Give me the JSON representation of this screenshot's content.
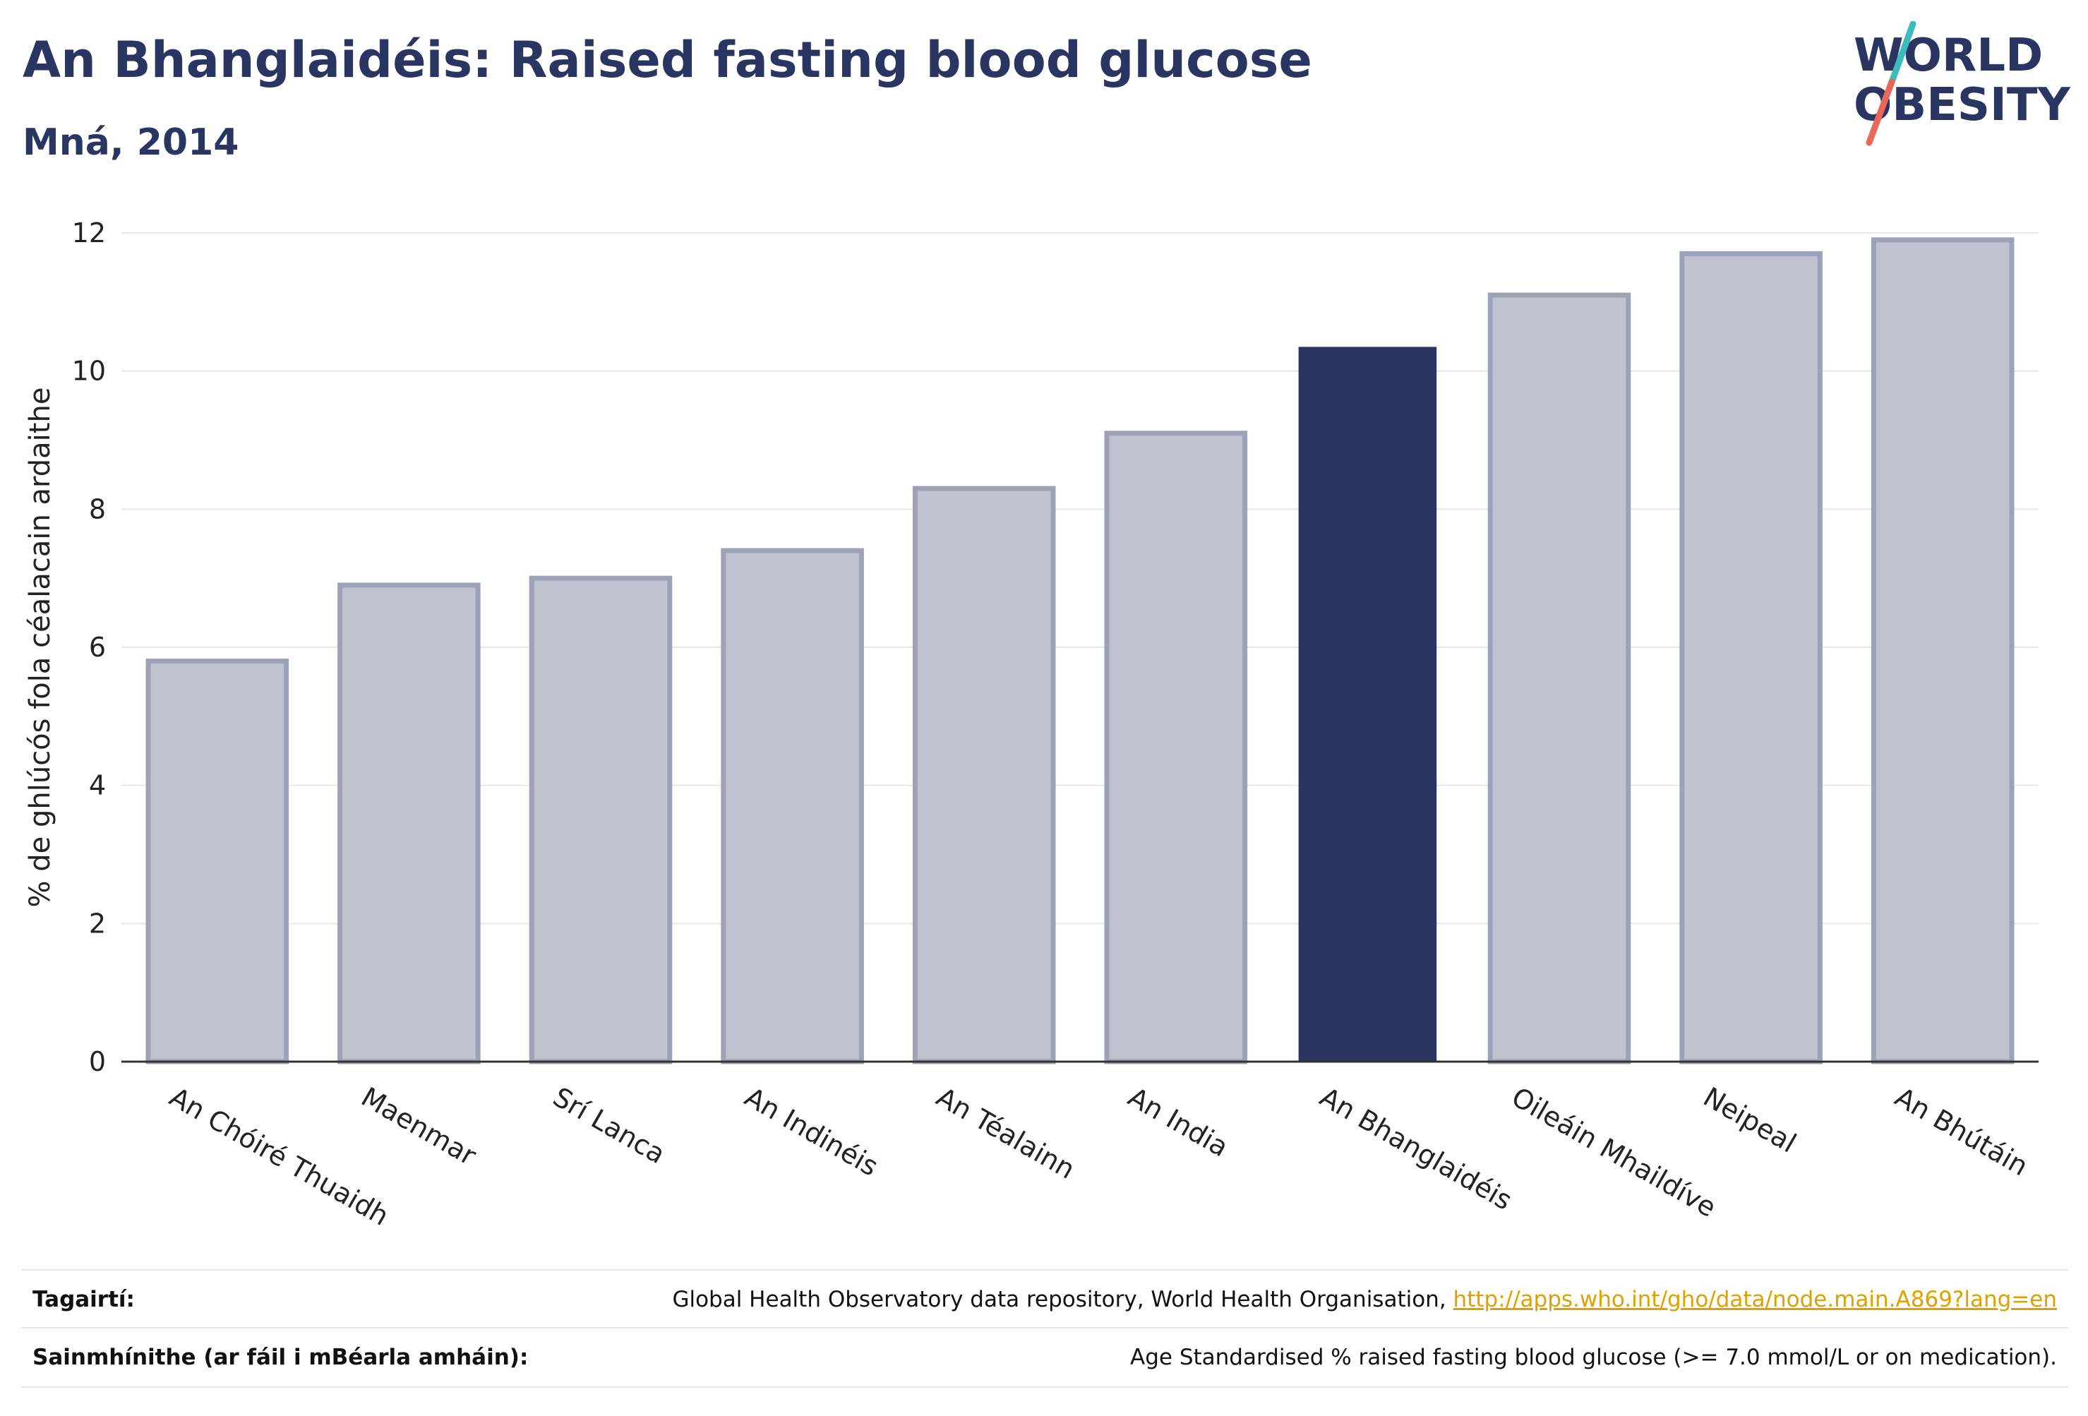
{
  "header": {
    "title": "An Bhanglaidéis: Raised fasting blood glucose",
    "subtitle": "Mná, 2014"
  },
  "logo": {
    "line1": "WORLD",
    "line2": "OBESITY",
    "brand_color": "#2a3561",
    "slash_top_color": "#3cbcbc",
    "slash_bottom_color": "#e8685a"
  },
  "chart_data": {
    "type": "bar",
    "categories": [
      "An Chóiré Thuaidh",
      "Maenmar",
      "Srí Lanca",
      "An Indinéis",
      "An Téalainn",
      "An India",
      "An Bhanglaidéis",
      "Oileáin Mhaildíve",
      "Neipeal",
      "An Bhútáin"
    ],
    "values": [
      5.8,
      6.9,
      7.0,
      7.4,
      8.3,
      9.1,
      10.35,
      11.1,
      11.7,
      11.9
    ],
    "highlight": "An Bhanglaidéis",
    "ylabel": "% de ghlúcós fola céalacain ardaithe",
    "xlabel": "",
    "ylim": [
      0,
      12
    ],
    "yticks": [
      0,
      2,
      4,
      6,
      8,
      10,
      12
    ],
    "grid": true,
    "colors": {
      "bar": "#bfc2cf",
      "bar_border": "#9ea2b8",
      "highlight": "#2a3561"
    }
  },
  "footer": {
    "references_label": "Tagairtí:",
    "references_text": "Global Health Observatory data repository, World Health Organisation, ",
    "references_link": "http://apps.who.int/gho/data/node.main.A869?lang=en",
    "definitions_label": "Sainmhínithe (ar fáil i mBéarla amháin):",
    "definitions_text": "Age Standardised % raised fasting blood glucose (>= 7.0 mmol/L or on medication)."
  }
}
